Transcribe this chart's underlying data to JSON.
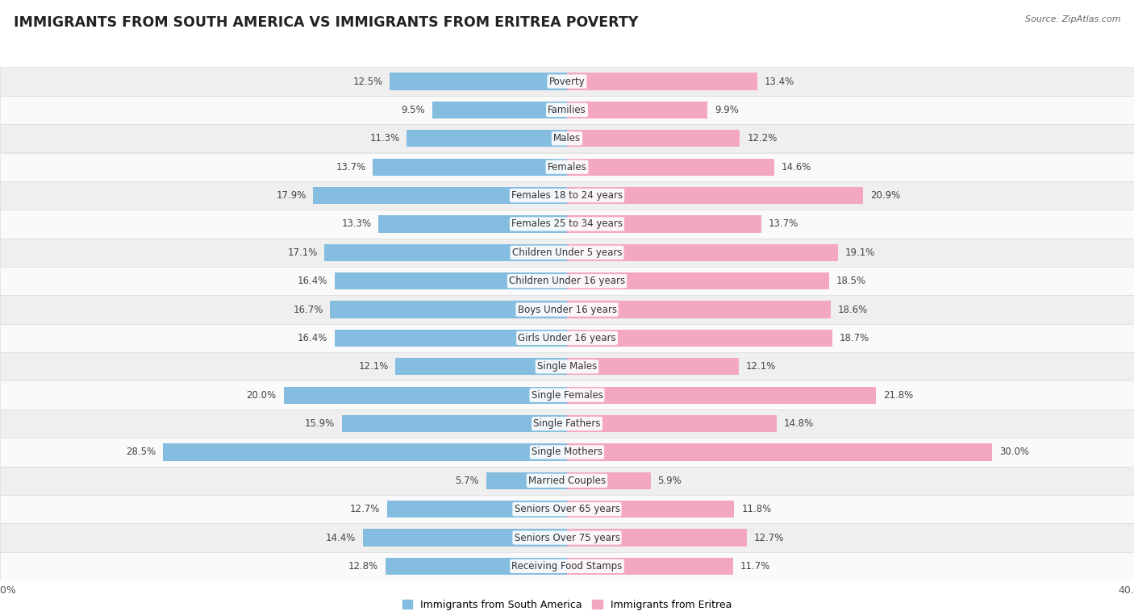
{
  "title": "IMMIGRANTS FROM SOUTH AMERICA VS IMMIGRANTS FROM ERITREA POVERTY",
  "source": "Source: ZipAtlas.com",
  "categories": [
    "Poverty",
    "Families",
    "Males",
    "Females",
    "Females 18 to 24 years",
    "Females 25 to 34 years",
    "Children Under 5 years",
    "Children Under 16 years",
    "Boys Under 16 years",
    "Girls Under 16 years",
    "Single Males",
    "Single Females",
    "Single Fathers",
    "Single Mothers",
    "Married Couples",
    "Seniors Over 65 years",
    "Seniors Over 75 years",
    "Receiving Food Stamps"
  ],
  "south_america": [
    12.5,
    9.5,
    11.3,
    13.7,
    17.9,
    13.3,
    17.1,
    16.4,
    16.7,
    16.4,
    12.1,
    20.0,
    15.9,
    28.5,
    5.7,
    12.7,
    14.4,
    12.8
  ],
  "eritrea": [
    13.4,
    9.9,
    12.2,
    14.6,
    20.9,
    13.7,
    19.1,
    18.5,
    18.6,
    18.7,
    12.1,
    21.8,
    14.8,
    30.0,
    5.9,
    11.8,
    12.7,
    11.7
  ],
  "blue_color": "#85BDE0",
  "pink_color": "#F4A8BF",
  "bg_row_light": "#EFEFEF",
  "bg_row_white": "#FAFAFA",
  "x_max": 40.0,
  "legend_label_blue": "Immigrants from South America",
  "legend_label_pink": "Immigrants from Eritrea",
  "bar_height": 0.6,
  "title_fontsize": 12.5,
  "label_fontsize": 8.5,
  "value_fontsize": 8.5
}
